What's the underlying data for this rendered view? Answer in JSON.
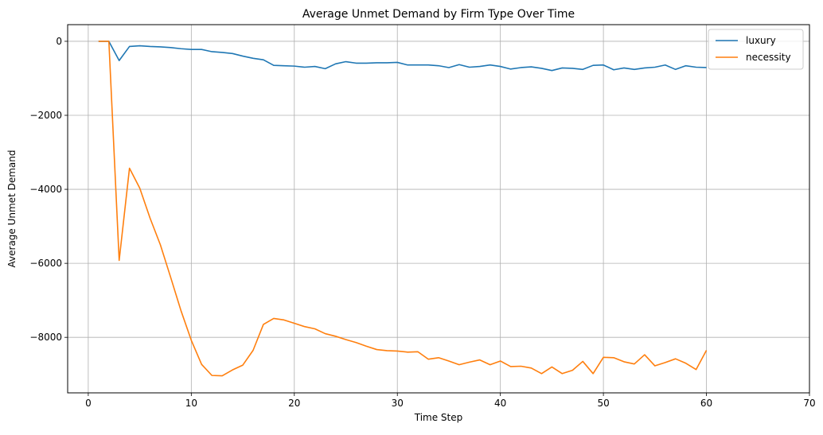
{
  "chart_data": {
    "type": "line",
    "title": "Average Unmet Demand by Firm Type Over Time",
    "xlabel": "Time Step",
    "ylabel": "Average Unmet Demand",
    "xlim": [
      -2,
      70
    ],
    "ylim": [
      -9500,
      450
    ],
    "xticks": [
      0,
      10,
      20,
      30,
      40,
      50,
      60,
      70
    ],
    "yticks": [
      0,
      -2000,
      -4000,
      -6000,
      -8000
    ],
    "xtick_labels": [
      "0",
      "10",
      "20",
      "30",
      "40",
      "50",
      "60",
      "70"
    ],
    "ytick_labels": [
      "0",
      "−2000",
      "−4000",
      "−6000",
      "−8000"
    ],
    "grid": true,
    "legend_position": "top-right",
    "x": [
      1,
      2,
      3,
      4,
      5,
      6,
      7,
      8,
      9,
      10,
      11,
      12,
      13,
      14,
      15,
      16,
      17,
      18,
      19,
      20,
      21,
      22,
      23,
      24,
      25,
      26,
      27,
      28,
      29,
      30,
      31,
      32,
      33,
      34,
      35,
      36,
      37,
      38,
      39,
      40,
      41,
      42,
      43,
      44,
      45,
      46,
      47,
      48,
      49,
      50,
      51,
      52,
      53,
      54,
      55,
      56,
      57,
      58,
      59,
      60
    ],
    "series": [
      {
        "name": "luxury",
        "color": "#1f77b4",
        "values": [
          0,
          0,
          -520,
          -140,
          -120,
          -140,
          -150,
          -170,
          -200,
          -220,
          -220,
          -280,
          -300,
          -330,
          -400,
          -460,
          -500,
          -650,
          -660,
          -670,
          -700,
          -680,
          -740,
          -610,
          -550,
          -590,
          -590,
          -580,
          -580,
          -570,
          -640,
          -640,
          -640,
          -660,
          -710,
          -630,
          -700,
          -680,
          -640,
          -680,
          -750,
          -710,
          -690,
          -730,
          -790,
          -720,
          -730,
          -760,
          -650,
          -640,
          -770,
          -720,
          -760,
          -720,
          -700,
          -640,
          -760,
          -660,
          -700,
          -710
        ]
      },
      {
        "name": "necessity",
        "color": "#ff7f0e",
        "values": [
          0,
          0,
          -5920,
          -3430,
          -3970,
          -4780,
          -5500,
          -6380,
          -7280,
          -8080,
          -8730,
          -9030,
          -9040,
          -8880,
          -8750,
          -8350,
          -7650,
          -7490,
          -7530,
          -7620,
          -7710,
          -7770,
          -7900,
          -7970,
          -8060,
          -8140,
          -8240,
          -8330,
          -8360,
          -8370,
          -8400,
          -8390,
          -8590,
          -8550,
          -8640,
          -8740,
          -8670,
          -8610,
          -8740,
          -8640,
          -8790,
          -8780,
          -8830,
          -8980,
          -8800,
          -8980,
          -8890,
          -8650,
          -8980,
          -8540,
          -8550,
          -8660,
          -8720,
          -8470,
          -8770,
          -8680,
          -8580,
          -8700,
          -8870,
          -8350
        ]
      }
    ]
  }
}
